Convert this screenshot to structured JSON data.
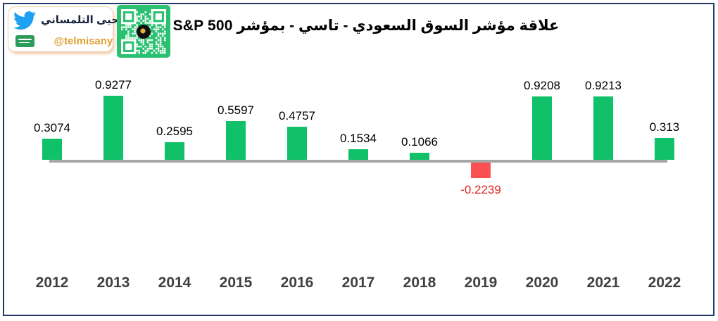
{
  "header": {
    "badge": {
      "name": "يحيى التلمساني",
      "handle": "@telmisany",
      "twitter_icon": "twitter-bird",
      "flag_icon": "saudi-flag",
      "handle_color": "#dfa032",
      "twitter_blue": "#1da1f2"
    },
    "qr_icon": "qr-code",
    "title": "علاقة مؤشر السوق السعودي - تاسي - بمؤشر S&P 500"
  },
  "chart_data": {
    "type": "bar",
    "title": "علاقة مؤشر السوق السعودي - تاسي - بمؤشر S&P 500",
    "categories": [
      "2012",
      "2013",
      "2014",
      "2015",
      "2016",
      "2017",
      "2018",
      "2019",
      "2020",
      "2021",
      "2022"
    ],
    "values": [
      0.3074,
      0.9277,
      0.2595,
      0.5597,
      0.4757,
      0.1534,
      0.1066,
      -0.2239,
      0.9208,
      0.9213,
      0.313
    ],
    "labels": [
      "0.3074",
      "0.9277",
      "0.2595",
      "0.5597",
      "0.4757",
      "0.1534",
      "0.1066",
      "-0.2239",
      "0.9208",
      "0.9213",
      "0.313"
    ],
    "xlabel": "",
    "ylabel": "",
    "ylim": [
      -0.35,
      1.05
    ],
    "grid": false,
    "legend": "none",
    "bar_positive_color": "#10c169",
    "bar_negative_color": "#fb5152",
    "value_label_color": "#000000",
    "negative_value_label_color": "#e02424",
    "axis_line_color": "#a6a6a6",
    "tick_label_color": "#404040",
    "frame_border_color": "#20386b"
  }
}
